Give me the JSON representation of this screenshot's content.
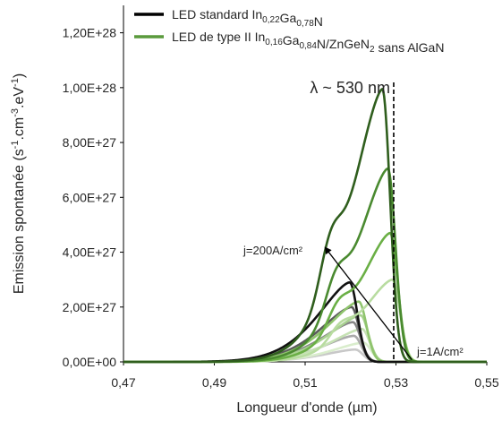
{
  "chart_data": {
    "type": "line",
    "xlabel": {
      "pre": "Longueur d'onde (",
      "mu": "µ",
      "post": "m)"
    },
    "ylabel": {
      "part1": "Emission spontanée  (s",
      "sup1": "-1",
      "part2": ".cm",
      "sup2": "-3",
      "part3": ".eV",
      "sup3": "-1",
      "part4": ")"
    },
    "xlim": [
      0.47,
      0.55
    ],
    "ylim": [
      0,
      1.3e+28
    ],
    "x_ticks": [
      0.47,
      0.49,
      0.51,
      0.53,
      0.55
    ],
    "x_tick_labels": [
      "0,47",
      "0,49",
      "0,51",
      "0,53",
      "0,55"
    ],
    "y_ticks": [
      0,
      2e+27,
      4e+27,
      6e+27,
      8e+27,
      1e+28,
      1.2e+28
    ],
    "y_tick_labels": [
      "0,00E+00",
      "2,00E+27",
      "4,00E+27",
      "6,00E+27",
      "8,00E+27",
      "1,00E+28",
      "1,20E+28"
    ],
    "grid": false,
    "legend": {
      "placement": "top",
      "items": [
        {
          "color": "#000000",
          "parts": [
            {
              "t": "LED standard In",
              "s": ""
            },
            {
              "t": "0,22",
              "s": "sub"
            },
            {
              "t": "Ga",
              "s": ""
            },
            {
              "t": "0,78",
              "s": "sub"
            },
            {
              "t": "N",
              "s": ""
            }
          ]
        },
        {
          "color": "#5a9a3c",
          "parts": [
            {
              "t": "LED de type II In",
              "s": ""
            },
            {
              "t": "0,16",
              "s": "sub"
            },
            {
              "t": "Ga",
              "s": ""
            },
            {
              "t": "0,84",
              "s": "sub"
            },
            {
              "t": "N/ZnGeN",
              "s": ""
            },
            {
              "t": "2",
              "s": "sub"
            },
            {
              "t": " sans AlGaN",
              "s": ""
            }
          ]
        }
      ]
    },
    "annotations": {
      "lambda_line": {
        "x": 0.5295,
        "label": "λ ~ 530 nm"
      },
      "j_high": {
        "label": "j=200A/cm²",
        "arrow_from": [
          0.5335,
          8e+25
        ],
        "arrow_to": [
          0.5145,
          4.15e+27
        ]
      },
      "j_low": {
        "label": "j=1A/cm²"
      }
    },
    "series": [
      {
        "family": "green",
        "color": "#2f5e1d",
        "peak_x": 0.527,
        "peak": 9.95e+27,
        "shoulder": true
      },
      {
        "family": "green",
        "color": "#4a8a30",
        "peak_x": 0.5282,
        "peak": 7.05e+27,
        "shoulder": true
      },
      {
        "family": "green",
        "color": "#6aaf45",
        "peak_x": 0.5287,
        "peak": 4.7e+27,
        "shoulder": true
      },
      {
        "family": "green",
        "color": "#b8dca0",
        "peak_x": 0.5292,
        "peak": 3e+27,
        "shoulder": true
      },
      {
        "family": "green",
        "color": "#8fc46d",
        "peak_x": 0.5218,
        "peak": 2.2e+27,
        "shoulder": false
      },
      {
        "family": "green",
        "color": "#a8d190",
        "peak_x": 0.5222,
        "peak": 1.7e+27,
        "shoulder": false
      },
      {
        "family": "green",
        "color": "#c6e2b4",
        "peak_x": 0.5225,
        "peak": 1.2e+27,
        "shoulder": false
      },
      {
        "family": "green",
        "color": "#d9edcc",
        "peak_x": 0.5228,
        "peak": 7e+26,
        "shoulder": false
      },
      {
        "family": "gray",
        "color": "#111111",
        "peak_x": 0.5198,
        "peak": 2.9e+27,
        "shoulder": false
      },
      {
        "family": "gray",
        "color": "#5b5b5b",
        "peak_x": 0.5202,
        "peak": 2e+27,
        "shoulder": false
      },
      {
        "family": "gray",
        "color": "#888888",
        "peak_x": 0.5205,
        "peak": 1.45e+27,
        "shoulder": false
      },
      {
        "family": "gray",
        "color": "#aaaaaa",
        "peak_x": 0.5207,
        "peak": 9.5e+26,
        "shoulder": false
      },
      {
        "family": "gray",
        "color": "#c8c8c8",
        "peak_x": 0.521,
        "peak": 4.5e+26,
        "shoulder": false
      }
    ]
  }
}
